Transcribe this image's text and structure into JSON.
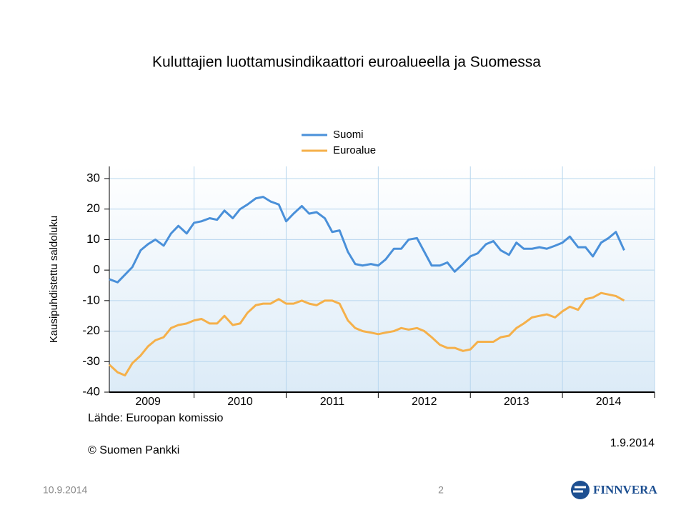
{
  "chart_data": {
    "type": "line",
    "title": "Kuluttajien luottamusindikaattori euroalueella ja Suomessa",
    "ylabel": "Kausipuhdistettu saldoluku",
    "source": "Lähde: Euroopan komissio",
    "copyright": "© Suomen Pankki",
    "date": "1.9.2014",
    "x": [
      2009.08,
      2009.17,
      2009.25,
      2009.33,
      2009.42,
      2009.5,
      2009.58,
      2009.67,
      2009.75,
      2009.83,
      2009.92,
      2010.0,
      2010.08,
      2010.17,
      2010.25,
      2010.33,
      2010.42,
      2010.5,
      2010.58,
      2010.67,
      2010.75,
      2010.83,
      2010.92,
      2011.0,
      2011.08,
      2011.17,
      2011.25,
      2011.33,
      2011.42,
      2011.5,
      2011.58,
      2011.67,
      2011.75,
      2011.83,
      2011.92,
      2012.0,
      2012.08,
      2012.17,
      2012.25,
      2012.33,
      2012.42,
      2012.5,
      2012.58,
      2012.67,
      2012.75,
      2012.83,
      2012.92,
      2013.0,
      2013.08,
      2013.17,
      2013.25,
      2013.33,
      2013.42,
      2013.5,
      2013.58,
      2013.67,
      2013.75,
      2013.83,
      2013.92,
      2014.0,
      2014.08,
      2014.17,
      2014.25,
      2014.33,
      2014.42,
      2014.5,
      2014.58,
      2014.67
    ],
    "series": [
      {
        "name": "Suomi",
        "color": "#4a90d9",
        "values": [
          -3,
          -4,
          -1.5,
          1,
          6.5,
          8.5,
          10,
          8,
          12,
          14.5,
          12,
          15.5,
          16,
          17,
          16.5,
          19.5,
          17,
          20,
          21.5,
          23.5,
          24,
          22.5,
          21.5,
          16,
          18.5,
          21,
          18.5,
          19,
          17,
          12.5,
          13,
          6,
          2,
          1.5,
          2,
          1.5,
          3.5,
          7,
          7,
          10,
          10.5,
          6,
          1.5,
          1.5,
          2.5,
          -0.5,
          2,
          4.5,
          5.5,
          8.5,
          9.5,
          6.5,
          5,
          9,
          7,
          7,
          7.5,
          7,
          8,
          9,
          11,
          7.5,
          7.5,
          4.5,
          9,
          10.5,
          12.5,
          6.5
        ]
      },
      {
        "name": "Euroalue",
        "color": "#f5b04a",
        "values": [
          -31,
          -33.5,
          -34.5,
          -30.5,
          -28,
          -25,
          -23,
          -22,
          -19,
          -18,
          -17.5,
          -16.5,
          -16,
          -17.5,
          -17.5,
          -15,
          -18,
          -17.5,
          -14,
          -11.5,
          -11,
          -11,
          -9.5,
          -11,
          -11,
          -10,
          -11,
          -11.5,
          -10,
          -10,
          -11,
          -16.5,
          -19,
          -20,
          -20.5,
          -21,
          -20.5,
          -20,
          -19,
          -19.5,
          -19,
          -20,
          -22,
          -24.5,
          -25.5,
          -25.5,
          -26.5,
          -26,
          -23.5,
          -23.5,
          -23.5,
          -22,
          -21.5,
          -19,
          -17.5,
          -15.5,
          -15,
          -14.5,
          -15.5,
          -13.5,
          -12,
          -13,
          -9.5,
          -9,
          -7.5,
          -8,
          -8.5,
          -10
        ]
      }
    ],
    "xlim": [
      2009.08,
      2015
    ],
    "xticks": [
      2010,
      2011,
      2012,
      2013,
      2014,
      2015
    ],
    "xlabels": [
      {
        "value": 2009.5,
        "label": "2009"
      },
      {
        "value": 2010.5,
        "label": "2010"
      },
      {
        "value": 2011.5,
        "label": "2011"
      },
      {
        "value": 2012.5,
        "label": "2012"
      },
      {
        "value": 2013.5,
        "label": "2013"
      },
      {
        "value": 2014.5,
        "label": "2014"
      }
    ],
    "ylim": [
      -40,
      30
    ],
    "yticks": [
      -40,
      -30,
      -20,
      -10,
      0,
      10,
      20,
      30
    ],
    "grid": true
  },
  "footer": {
    "date": "10.9.2014",
    "page": "2",
    "logo": "FINNVERA"
  }
}
